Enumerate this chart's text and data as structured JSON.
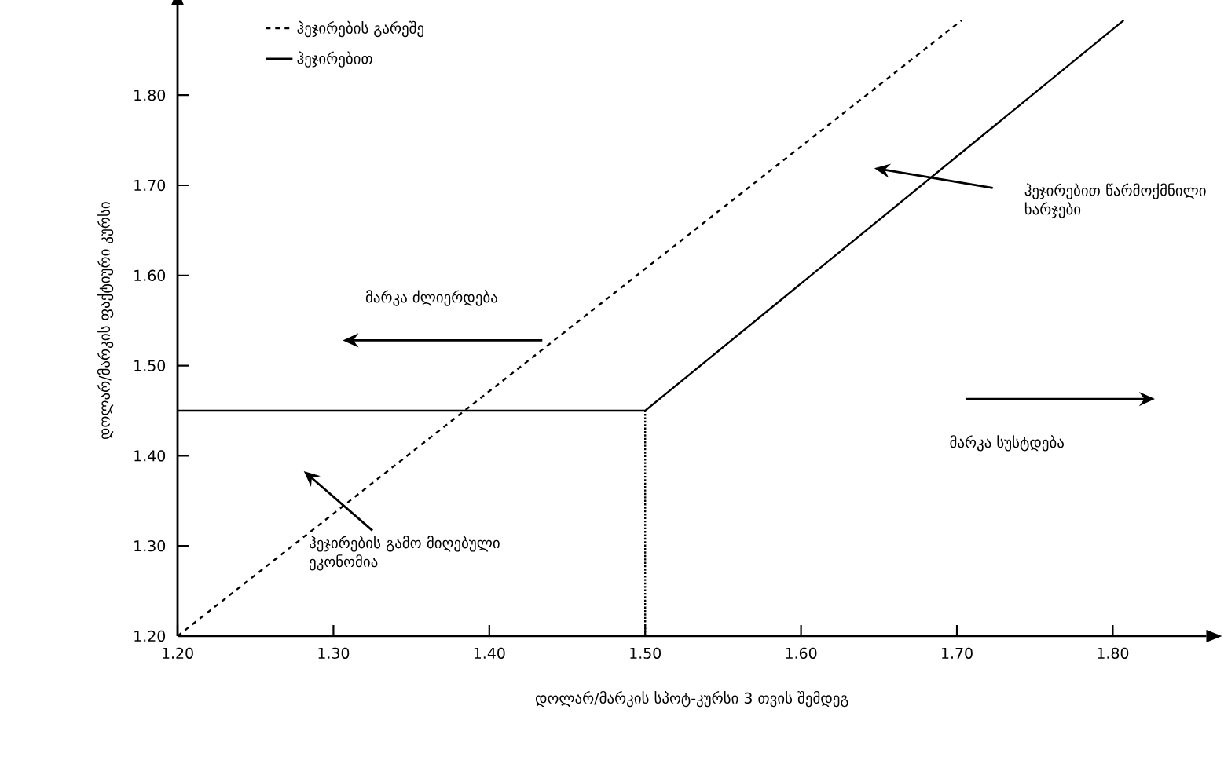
{
  "chart_data": {
    "type": "line",
    "xlabel": "დოლარ/მარკის სპოტ-კურსი 3 თვის შემდეგ",
    "ylabel": "დოლარ/მარკის ფაქტიური კურსი",
    "series": [
      {
        "name": "ჰეჯირების გარეშე",
        "color": "#000000",
        "line_style": "dashed",
        "x": [
          1.2,
          1.703
        ],
        "values": [
          1.2,
          1.883
        ]
      },
      {
        "name": "ჰეჯირებით",
        "color": "#000000",
        "line_style": "solid",
        "x": [
          1.2,
          1.5,
          1.807
        ],
        "values": [
          1.45,
          1.45,
          1.883
        ]
      },
      {
        "color": "#000000",
        "line_style": "dotted",
        "x": [
          1.5,
          1.5
        ],
        "values": [
          1.2,
          1.45
        ]
      }
    ],
    "xlim": [
      1.2,
      1.86
    ],
    "ylim": [
      1.2,
      1.9
    ],
    "xticks": [
      {
        "value": 1.2,
        "label": "1.20"
      },
      {
        "value": 1.3,
        "label": "1.30"
      },
      {
        "value": 1.4,
        "label": "1.40"
      },
      {
        "value": 1.5,
        "label": "1.50"
      },
      {
        "value": 1.6,
        "label": "1.60"
      },
      {
        "value": 1.7,
        "label": "1.70"
      },
      {
        "value": 1.8,
        "label": "1.80"
      }
    ],
    "yticks": [
      {
        "value": 1.2,
        "label": "1.20"
      },
      {
        "value": 1.3,
        "label": "1.30"
      },
      {
        "value": 1.4,
        "label": "1.40"
      },
      {
        "value": 1.5,
        "label": "1.50"
      },
      {
        "value": 1.6,
        "label": "1.60"
      },
      {
        "value": 1.7,
        "label": "1.70"
      },
      {
        "value": 1.8,
        "label": "1.80"
      }
    ],
    "legend": "top left",
    "grid": false,
    "marker": "none",
    "annotations": [
      "მარკა ძლიერდება",
      "მარკა სუსტდება",
      "ჰეჯირებით წარმოქმნილი ხარჯები",
      "ჰეჯირების გამო მიღებული ეკონომია"
    ]
  }
}
